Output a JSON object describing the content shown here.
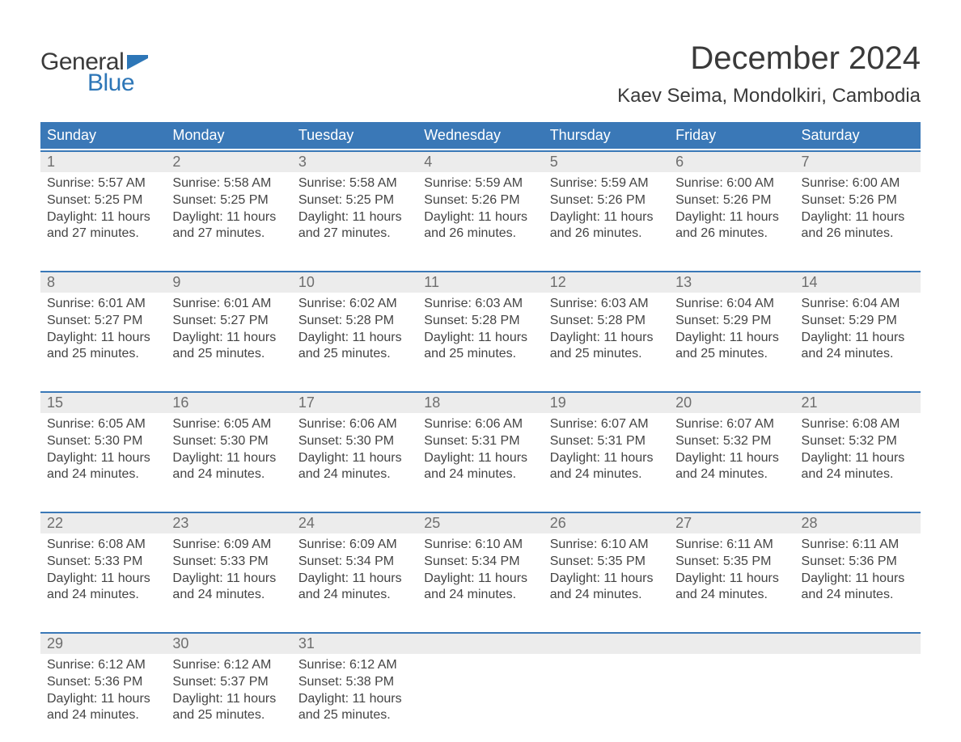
{
  "logo": {
    "text1": "General",
    "text2": "Blue",
    "flag_color": "#2d76b7"
  },
  "title": "December 2024",
  "location": "Kaev Seima, Mondolkiri, Cambodia",
  "colors": {
    "header_bg": "#3a78b7",
    "header_text": "#ffffff",
    "row_border": "#3a78b7",
    "daynum_bg": "#ececec",
    "daynum_text": "#6e6e6e",
    "body_text": "#444444",
    "page_bg": "#ffffff"
  },
  "fonts": {
    "title_size_pt": 30,
    "location_size_pt": 18,
    "header_size_pt": 14,
    "daynum_size_pt": 14,
    "cell_size_pt": 12
  },
  "day_labels": [
    "Sunday",
    "Monday",
    "Tuesday",
    "Wednesday",
    "Thursday",
    "Friday",
    "Saturday"
  ],
  "weeks": [
    [
      {
        "n": "1",
        "sr": "5:57 AM",
        "ss": "5:25 PM",
        "dl": "11 hours and 27 minutes."
      },
      {
        "n": "2",
        "sr": "5:58 AM",
        "ss": "5:25 PM",
        "dl": "11 hours and 27 minutes."
      },
      {
        "n": "3",
        "sr": "5:58 AM",
        "ss": "5:25 PM",
        "dl": "11 hours and 27 minutes."
      },
      {
        "n": "4",
        "sr": "5:59 AM",
        "ss": "5:26 PM",
        "dl": "11 hours and 26 minutes."
      },
      {
        "n": "5",
        "sr": "5:59 AM",
        "ss": "5:26 PM",
        "dl": "11 hours and 26 minutes."
      },
      {
        "n": "6",
        "sr": "6:00 AM",
        "ss": "5:26 PM",
        "dl": "11 hours and 26 minutes."
      },
      {
        "n": "7",
        "sr": "6:00 AM",
        "ss": "5:26 PM",
        "dl": "11 hours and 26 minutes."
      }
    ],
    [
      {
        "n": "8",
        "sr": "6:01 AM",
        "ss": "5:27 PM",
        "dl": "11 hours and 25 minutes."
      },
      {
        "n": "9",
        "sr": "6:01 AM",
        "ss": "5:27 PM",
        "dl": "11 hours and 25 minutes."
      },
      {
        "n": "10",
        "sr": "6:02 AM",
        "ss": "5:28 PM",
        "dl": "11 hours and 25 minutes."
      },
      {
        "n": "11",
        "sr": "6:03 AM",
        "ss": "5:28 PM",
        "dl": "11 hours and 25 minutes."
      },
      {
        "n": "12",
        "sr": "6:03 AM",
        "ss": "5:28 PM",
        "dl": "11 hours and 25 minutes."
      },
      {
        "n": "13",
        "sr": "6:04 AM",
        "ss": "5:29 PM",
        "dl": "11 hours and 25 minutes."
      },
      {
        "n": "14",
        "sr": "6:04 AM",
        "ss": "5:29 PM",
        "dl": "11 hours and 24 minutes."
      }
    ],
    [
      {
        "n": "15",
        "sr": "6:05 AM",
        "ss": "5:30 PM",
        "dl": "11 hours and 24 minutes."
      },
      {
        "n": "16",
        "sr": "6:05 AM",
        "ss": "5:30 PM",
        "dl": "11 hours and 24 minutes."
      },
      {
        "n": "17",
        "sr": "6:06 AM",
        "ss": "5:30 PM",
        "dl": "11 hours and 24 minutes."
      },
      {
        "n": "18",
        "sr": "6:06 AM",
        "ss": "5:31 PM",
        "dl": "11 hours and 24 minutes."
      },
      {
        "n": "19",
        "sr": "6:07 AM",
        "ss": "5:31 PM",
        "dl": "11 hours and 24 minutes."
      },
      {
        "n": "20",
        "sr": "6:07 AM",
        "ss": "5:32 PM",
        "dl": "11 hours and 24 minutes."
      },
      {
        "n": "21",
        "sr": "6:08 AM",
        "ss": "5:32 PM",
        "dl": "11 hours and 24 minutes."
      }
    ],
    [
      {
        "n": "22",
        "sr": "6:08 AM",
        "ss": "5:33 PM",
        "dl": "11 hours and 24 minutes."
      },
      {
        "n": "23",
        "sr": "6:09 AM",
        "ss": "5:33 PM",
        "dl": "11 hours and 24 minutes."
      },
      {
        "n": "24",
        "sr": "6:09 AM",
        "ss": "5:34 PM",
        "dl": "11 hours and 24 minutes."
      },
      {
        "n": "25",
        "sr": "6:10 AM",
        "ss": "5:34 PM",
        "dl": "11 hours and 24 minutes."
      },
      {
        "n": "26",
        "sr": "6:10 AM",
        "ss": "5:35 PM",
        "dl": "11 hours and 24 minutes."
      },
      {
        "n": "27",
        "sr": "6:11 AM",
        "ss": "5:35 PM",
        "dl": "11 hours and 24 minutes."
      },
      {
        "n": "28",
        "sr": "6:11 AM",
        "ss": "5:36 PM",
        "dl": "11 hours and 24 minutes."
      }
    ],
    [
      {
        "n": "29",
        "sr": "6:12 AM",
        "ss": "5:36 PM",
        "dl": "11 hours and 24 minutes."
      },
      {
        "n": "30",
        "sr": "6:12 AM",
        "ss": "5:37 PM",
        "dl": "11 hours and 25 minutes."
      },
      {
        "n": "31",
        "sr": "6:12 AM",
        "ss": "5:38 PM",
        "dl": "11 hours and 25 minutes."
      },
      null,
      null,
      null,
      null
    ]
  ],
  "labels": {
    "sunrise": "Sunrise: ",
    "sunset": "Sunset: ",
    "daylight": "Daylight: "
  }
}
